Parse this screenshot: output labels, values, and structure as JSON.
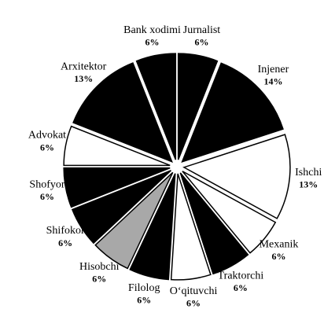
{
  "chart_data": {
    "type": "pie",
    "categories": [
      "Jurnalist",
      "Injener",
      "Ishchi",
      "Mexanik",
      "Traktorchi",
      "O‘qituvchi",
      "Filolog",
      "Hisobchi",
      "Shifokor",
      "Shofyor",
      "Advokat",
      "Arxitektor",
      "Bank xodimi"
    ],
    "values": [
      6,
      14,
      13,
      6,
      6,
      6,
      6,
      6,
      6,
      6,
      6,
      13,
      6
    ],
    "value_labels": [
      "6%",
      "14%",
      "13%",
      "6%",
      "6%",
      "6%",
      "6%",
      "6%",
      "6%",
      "6%",
      "6%",
      "13%",
      "6%"
    ],
    "colors": [
      "#000000",
      "#000000",
      "#ffffff",
      "#ffffff",
      "#000000",
      "#ffffff",
      "#000000",
      "#a8a8a8",
      "#000000",
      "#000000",
      "#ffffff",
      "#000000",
      "#000000"
    ]
  }
}
